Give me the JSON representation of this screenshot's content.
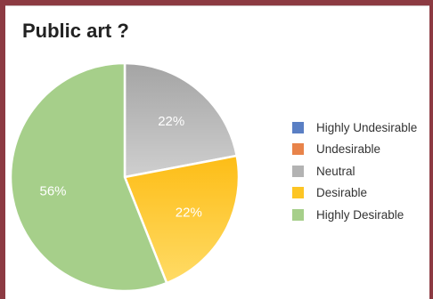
{
  "chart_data": {
    "type": "pie",
    "title": "Public art ?",
    "legend_position": "right",
    "series": [
      {
        "name": "Highly Undesirable",
        "value": 0,
        "color": "#5a7fc4"
      },
      {
        "name": "Undesirable",
        "value": 0,
        "color": "#e8834a"
      },
      {
        "name": "Neutral",
        "value": 22,
        "label": "22%",
        "color": "#b3b3b3"
      },
      {
        "name": "Desirable",
        "value": 22,
        "label": "22%",
        "color": "#fdc524"
      },
      {
        "name": "Highly Desirable",
        "value": 56,
        "label": "56%",
        "color": "#a6cf8a"
      }
    ]
  }
}
